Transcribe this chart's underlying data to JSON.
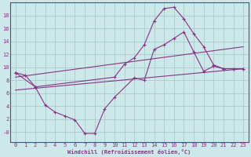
{
  "xlabel": "Windchill (Refroidissement éolien,°C)",
  "bg_color": "#cce8e8",
  "line_color": "#883388",
  "grid_color": "#aacccc",
  "xlim": [
    -0.5,
    23.5
  ],
  "ylim": [
    -1.5,
    20
  ],
  "xticks": [
    0,
    1,
    2,
    3,
    4,
    5,
    6,
    7,
    8,
    9,
    10,
    11,
    12,
    13,
    14,
    15,
    16,
    17,
    18,
    19,
    20,
    21,
    22,
    23
  ],
  "yticks": [
    0,
    2,
    4,
    6,
    8,
    10,
    12,
    14,
    16,
    18
  ],
  "ytick_labels": [
    "-0",
    "2",
    "4",
    "6",
    "8",
    "10",
    "12",
    "14",
    "16",
    "18"
  ],
  "line1_x": [
    0,
    1,
    2,
    10,
    11,
    12,
    13,
    14,
    15,
    16,
    17,
    18,
    19,
    20,
    21,
    22,
    23
  ],
  "line1_y": [
    9.2,
    8.8,
    7.0,
    8.5,
    10.5,
    11.5,
    13.5,
    17.2,
    19.1,
    19.3,
    17.5,
    15.2,
    13.2,
    10.4,
    9.8,
    9.8,
    9.8
  ],
  "line2_x": [
    0,
    2,
    3,
    4,
    5,
    6,
    7,
    8,
    9,
    10,
    12,
    13,
    14,
    15,
    16,
    17,
    18,
    19,
    20,
    21,
    22,
    23
  ],
  "line2_y": [
    9.2,
    7.0,
    4.2,
    3.1,
    2.5,
    1.9,
    -0.2,
    -0.2,
    3.6,
    5.4,
    8.4,
    8.0,
    12.8,
    13.5,
    14.5,
    15.5,
    12.4,
    9.4,
    10.2,
    9.8,
    9.8,
    9.8
  ],
  "line3_x": [
    0,
    23
  ],
  "line3_y": [
    6.5,
    9.8
  ],
  "line4_x": [
    0,
    23
  ],
  "line4_y": [
    8.5,
    13.2
  ]
}
